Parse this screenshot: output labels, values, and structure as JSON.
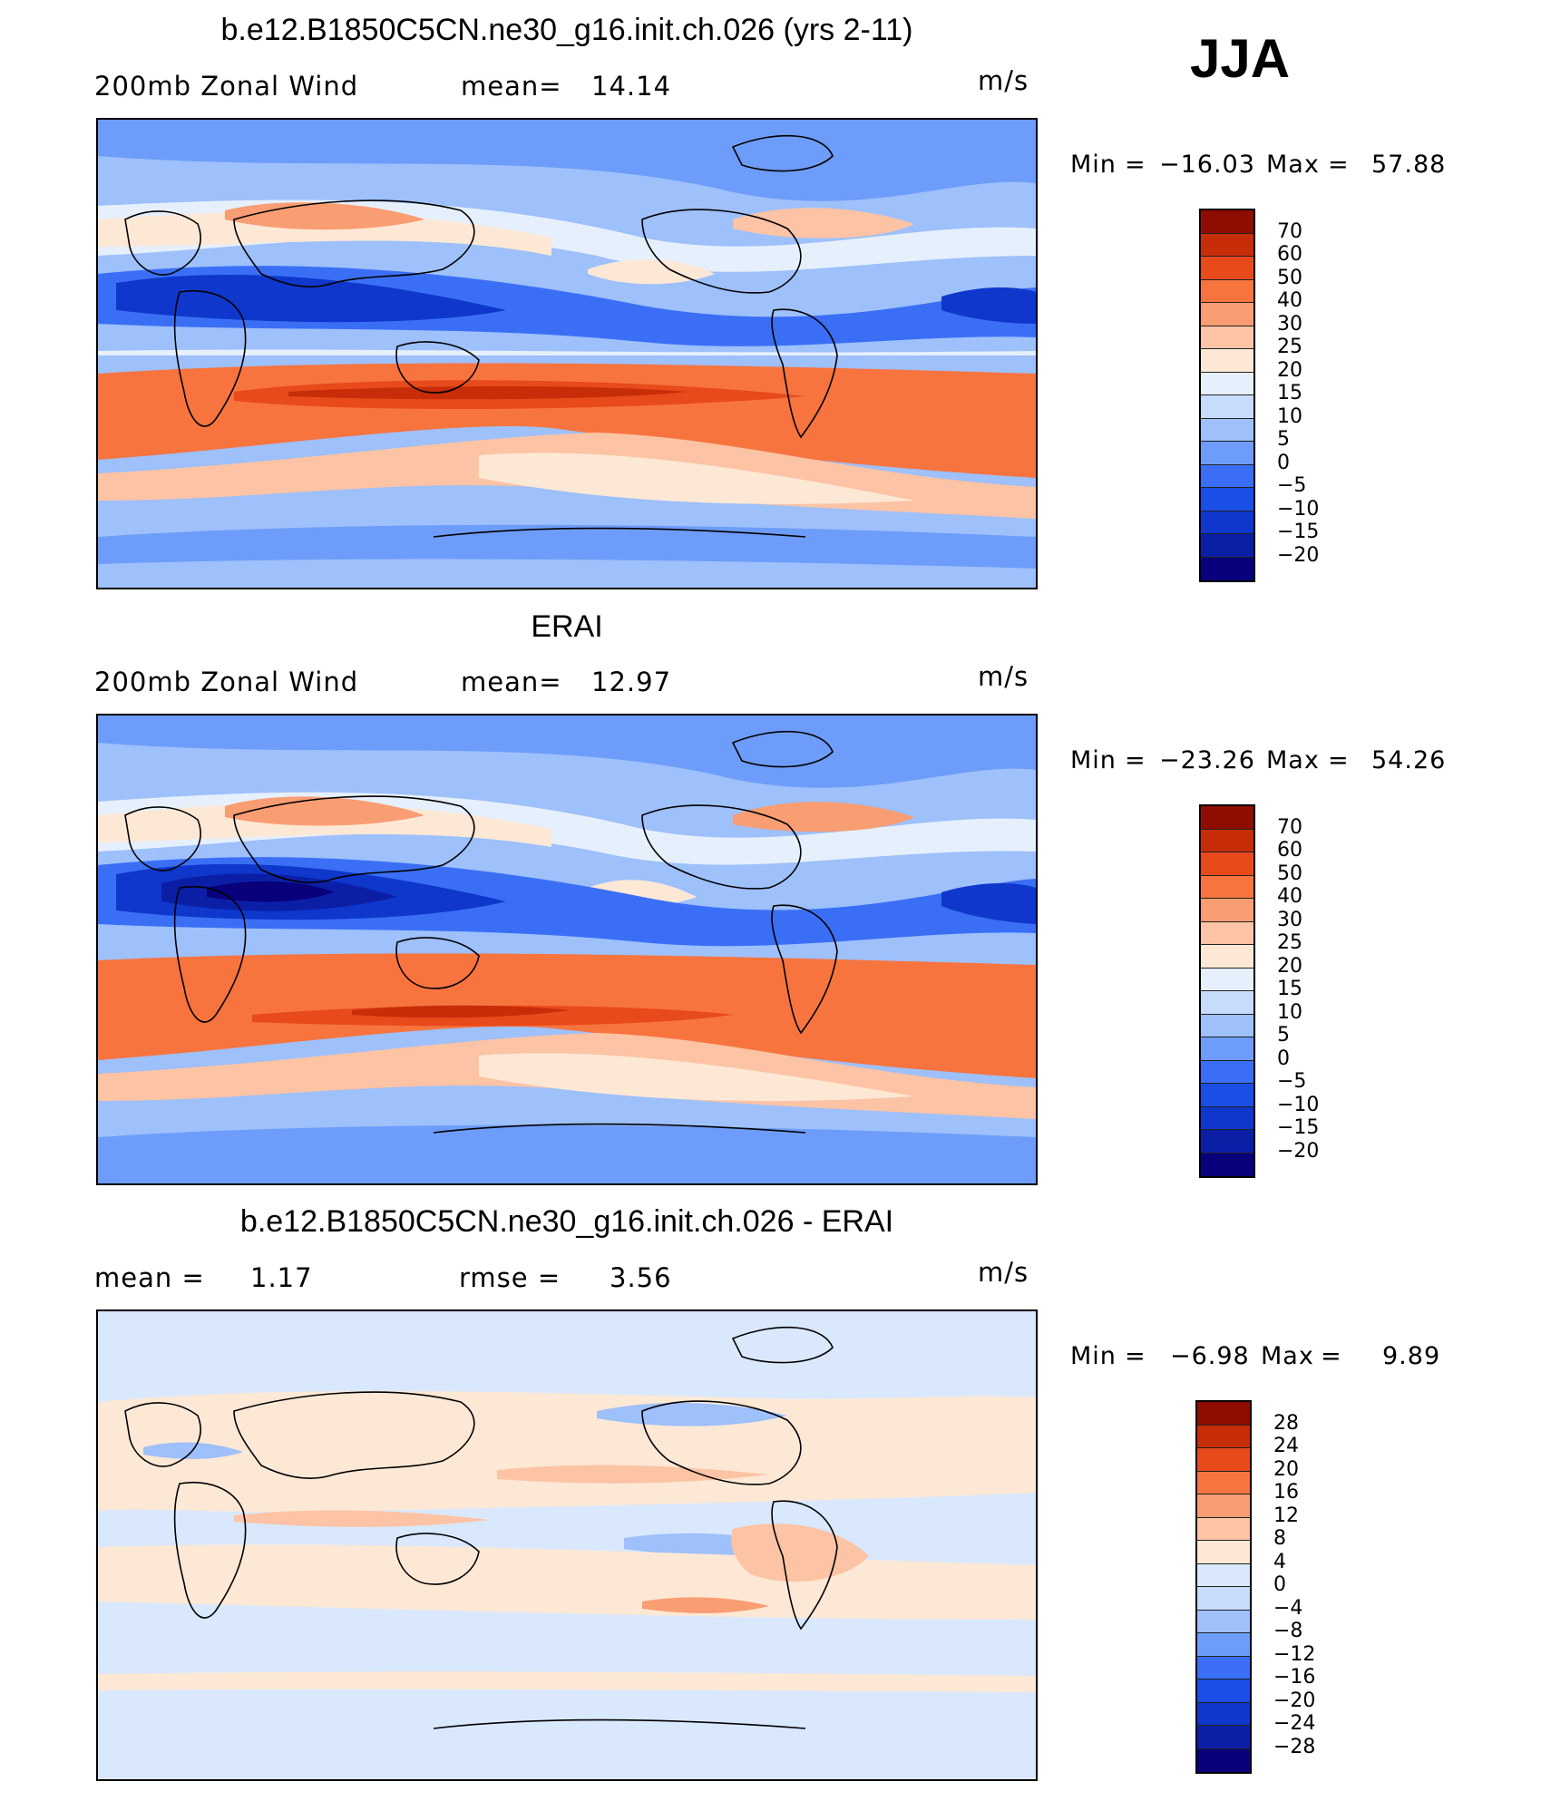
{
  "season": "JJA",
  "colors": {
    "abs_scale": [
      "#08007a",
      "#0b1fa6",
      "#0f37cc",
      "#1a4ee6",
      "#3a6ff5",
      "#6e9cfa",
      "#9ec0fb",
      "#c7dbfc",
      "#e6f0fd",
      "#fde8d6",
      "#fcc3a4",
      "#f99d73",
      "#f7743f",
      "#e84a1c",
      "#c72d08",
      "#8f0c00"
    ],
    "diff_scale": [
      "#08007a",
      "#0b1fa6",
      "#0f37cc",
      "#1a4ee6",
      "#3a6ff5",
      "#6e9cfa",
      "#9ec0fb",
      "#c7dbfc",
      "#d9e8fc",
      "#fde8d6",
      "#fcc3a4",
      "#f99d73",
      "#f7743f",
      "#e84a1c",
      "#c72d08",
      "#8f0c00"
    ]
  },
  "panels": [
    {
      "title": "b.e12.B1850C5CN.ne30_g16.init.ch.026 (yrs 2-11)",
      "left_label": "200mb Zonal Wind",
      "mid_label": "mean=",
      "mid_value": "14.14",
      "units": "m/s",
      "min_label": "Min",
      "min_value": "−16.03",
      "max_label": "Max",
      "max_value": "57.88",
      "colorbar_labels": [
        "70",
        "60",
        "50",
        "40",
        "30",
        "25",
        "20",
        "15",
        "10",
        "5",
        "0",
        "−5",
        "−10",
        "−15",
        "−20"
      ]
    },
    {
      "title": "ERAI",
      "left_label": "200mb Zonal Wind",
      "mid_label": "mean=",
      "mid_value": "12.97",
      "units": "m/s",
      "min_label": "Min",
      "min_value": "−23.26",
      "max_label": "Max",
      "max_value": "54.26",
      "colorbar_labels": [
        "70",
        "60",
        "50",
        "40",
        "30",
        "25",
        "20",
        "15",
        "10",
        "5",
        "0",
        "−5",
        "−10",
        "−15",
        "−20"
      ]
    },
    {
      "title": "b.e12.B1850C5CN.ne30_g16.init.ch.026 - ERAI",
      "left_label": "mean =",
      "left_value": "1.17",
      "mid_label": "rmse =",
      "mid_value": "3.56",
      "units": "m/s",
      "min_label": "Min",
      "min_value": "−6.98",
      "max_label": "Max",
      "max_value": "9.89",
      "colorbar_labels": [
        "28",
        "24",
        "20",
        "16",
        "12",
        "8",
        "4",
        "0",
        "−4",
        "−8",
        "−12",
        "−16",
        "−20",
        "−24",
        "−28"
      ]
    }
  ]
}
